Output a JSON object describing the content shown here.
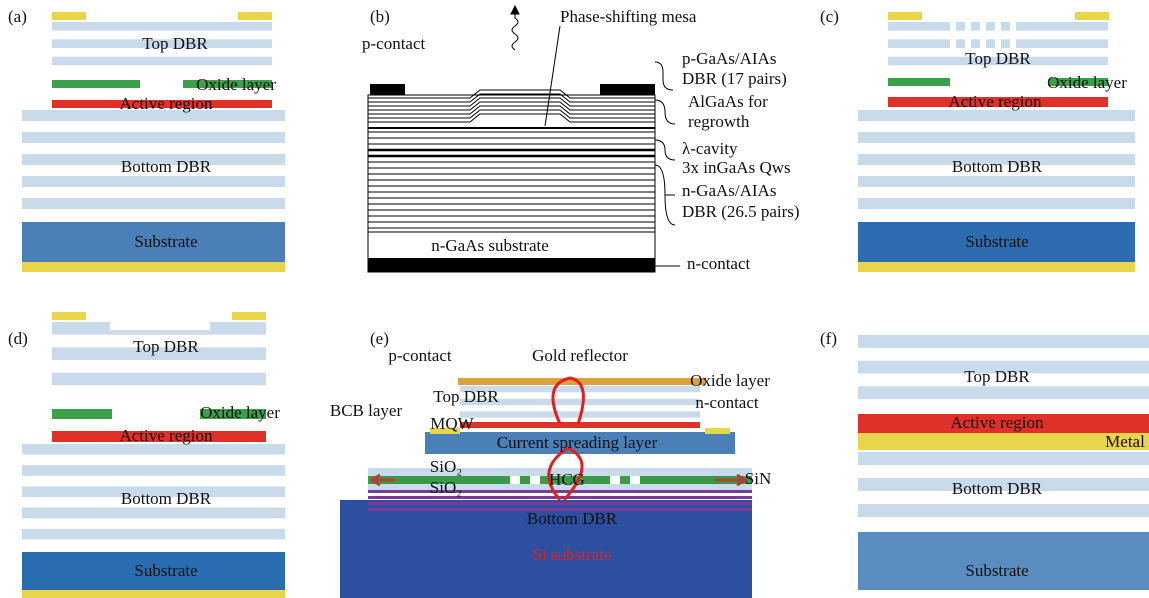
{
  "panels": [
    {
      "label": "(a)",
      "texts": [
        "Top DBR",
        "Oxide layer",
        "Active region",
        "Bottom DBR",
        "Substrate"
      ]
    },
    {
      "label": "(b)",
      "texts": [
        "p-contact",
        "Phase-shifting mesa",
        "p-GaAs/AIAs",
        "DBR (17 pairs)",
        "AlGaAs for",
        "regrowth",
        "λ-cavity",
        "3x inGaAs Qws",
        "n-GaAs/AIAs",
        "DBR (26.5 pairs)",
        "n-GaAs substrate",
        "n-contact"
      ]
    },
    {
      "label": "(c)",
      "texts": [
        "Top DBR",
        "Oxide layer",
        "Active region",
        "Bottom DBR",
        "Substrate"
      ]
    },
    {
      "label": "(d)",
      "texts": [
        "Top DBR",
        "Oxide layer",
        "Active region",
        "Bottom DBR",
        "Substrate"
      ]
    },
    {
      "label": "(e)",
      "texts": [
        "p-contact",
        "Gold reflector",
        "Oxide layer",
        "n-contact",
        "BCB layer",
        "Top DBR",
        "MQW",
        "Current spreading layer",
        "SiO₂",
        "SiO₂",
        "HCG",
        "SiN",
        "Bottom DBR",
        "Si substrate"
      ]
    },
    {
      "label": "(f)",
      "texts": [
        "Top DBR",
        "Active region",
        "Metal",
        "Bottom DBR",
        "Substrate"
      ]
    }
  ]
}
